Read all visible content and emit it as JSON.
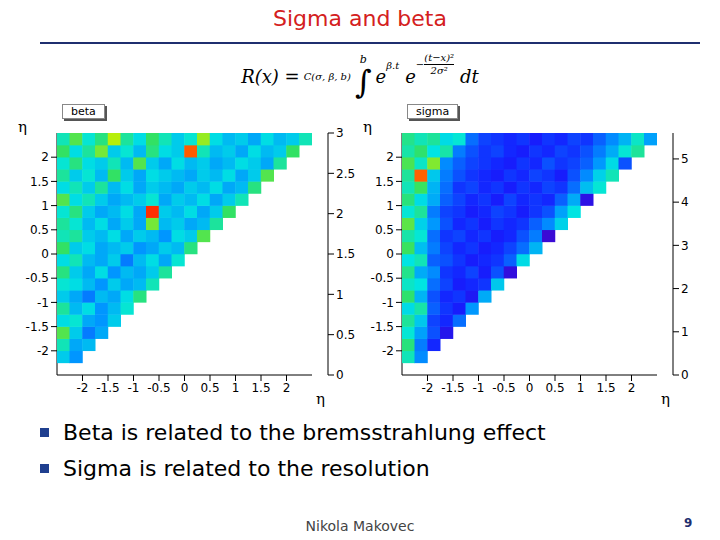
{
  "slide": {
    "title": "Sigma and beta",
    "formula": {
      "lhs": "R(x) =",
      "constant": "C(σ, β, b)",
      "integral": "∫",
      "upper_limit": "b",
      "base": "e",
      "exp1": "β.t",
      "exp2_sign": "−",
      "exp2_numerator": "(t−x)²",
      "exp2_denominator": "2σ²",
      "differential": "dt"
    },
    "bullets": [
      "Beta is related to the bremsstrahlung effect",
      "Sigma is related to the resolution"
    ],
    "footer": "Nikola Makovec",
    "page": 9
  },
  "chart_data": [
    {
      "type": "heatmap",
      "title": "beta",
      "x_label": "η",
      "y_label": "η",
      "xlim": [
        -2.5,
        2.5
      ],
      "ylim": [
        -2.5,
        2.5
      ],
      "xticks": [
        -2,
        -1.5,
        -1,
        -0.5,
        0,
        0.5,
        1,
        1.5,
        2
      ],
      "yticks": [
        -2,
        -1.5,
        -1,
        -0.5,
        0,
        0.5,
        1,
        1.5,
        2
      ],
      "x_bins": [
        -2.5,
        -2.25,
        -2,
        -1.75,
        -1.5,
        -1.25,
        -1,
        -0.75,
        -0.5,
        -0.25,
        0,
        0.25,
        0.5,
        0.75,
        1,
        1.25,
        1.5,
        1.75,
        2,
        2.25,
        2.5
      ],
      "y_bins": [
        -2.5,
        -2.25,
        -2,
        -1.75,
        -1.5,
        -1.25,
        -1,
        -0.75,
        -0.5,
        -0.25,
        0,
        0.25,
        0.5,
        0.75,
        1,
        1.25,
        1.5,
        1.75,
        2,
        2.25,
        2.5
      ],
      "z": [
        [
          null
        ],
        [
          1.2,
          0.9
        ],
        [
          1.5,
          1.0,
          1.1
        ],
        [
          1.9,
          1.2,
          0.8,
          1.0
        ],
        [
          1.3,
          1.4,
          1.0,
          0.9,
          1.2
        ],
        [
          1.6,
          1.1,
          1.3,
          0.9,
          1.1,
          1.4
        ],
        [
          1.2,
          1.0,
          0.8,
          1.1,
          1.0,
          1.3,
          1.7
        ],
        [
          1.4,
          1.3,
          1.1,
          0.9,
          1.2,
          1.0,
          1.1,
          1.5
        ],
        [
          1.7,
          1.2,
          1.0,
          1.3,
          0.9,
          1.1,
          1.0,
          1.2,
          1.6
        ],
        [
          1.3,
          1.5,
          1.1,
          1.0,
          1.2,
          0.8,
          1.1,
          1.3,
          1.0,
          1.4
        ],
        [
          1.8,
          1.2,
          1.3,
          1.0,
          1.1,
          1.2,
          0.9,
          1.0,
          1.2,
          1.1,
          1.7
        ],
        [
          1.5,
          1.6,
          1.2,
          1.1,
          1.3,
          1.0,
          1.2,
          1.1,
          0.9,
          1.3,
          1.2,
          1.9
        ],
        [
          1.6,
          1.4,
          1.1,
          1.3,
          1.0,
          1.2,
          1.0,
          2.0,
          1.1,
          1.2,
          1.0,
          1.1,
          1.6
        ],
        [
          1.4,
          1.7,
          1.2,
          1.0,
          1.1,
          1.3,
          1.0,
          2.9,
          1.2,
          1.1,
          1.3,
          1.0,
          1.2,
          1.8
        ],
        [
          1.9,
          1.3,
          1.5,
          1.2,
          1.0,
          1.1,
          1.2,
          1.4,
          1.0,
          1.2,
          1.1,
          1.3,
          1.0,
          1.2,
          1.5
        ],
        [
          1.3,
          1.5,
          1.2,
          1.6,
          1.1,
          1.3,
          1.0,
          1.2,
          1.1,
          1.0,
          1.2,
          1.1,
          1.3,
          1.0,
          1.1,
          1.7
        ],
        [
          1.6,
          1.2,
          1.4,
          1.1,
          1.8,
          1.2,
          1.0,
          1.3,
          1.2,
          1.1,
          1.0,
          1.2,
          1.1,
          1.3,
          1.0,
          1.2,
          1.9
        ],
        [
          1.4,
          1.7,
          1.3,
          1.2,
          1.5,
          1.1,
          1.9,
          1.2,
          1.0,
          1.3,
          1.1,
          1.2,
          1.0,
          1.1,
          1.3,
          1.2,
          1.0,
          1.6
        ],
        [
          1.8,
          1.3,
          1.6,
          2.0,
          1.2,
          1.4,
          1.1,
          1.7,
          1.3,
          1.2,
          2.8,
          1.5,
          1.1,
          1.2,
          1.0,
          1.3,
          1.1,
          1.2,
          1.8
        ],
        [
          1.5,
          1.9,
          1.4,
          1.7,
          2.2,
          1.6,
          1.3,
          1.8,
          1.5,
          1.2,
          1.4,
          2.1,
          1.3,
          1.1,
          1.2,
          1.0,
          1.3,
          1.1,
          1.2,
          1.5
        ]
      ],
      "colorbar": {
        "range": [
          0,
          3
        ],
        "ticks": [
          0,
          0.5,
          1,
          1.5,
          2,
          2.5,
          3
        ]
      }
    },
    {
      "type": "heatmap",
      "title": "sigma",
      "x_label": "η",
      "y_label": "η",
      "xlim": [
        -2.5,
        2.5
      ],
      "ylim": [
        -2.5,
        2.5
      ],
      "xticks": [
        -2,
        -1.5,
        -1,
        -0.5,
        0,
        0.5,
        1,
        1.5,
        2
      ],
      "yticks": [
        -2,
        -1.5,
        -1,
        -0.5,
        0,
        0.5,
        1,
        1.5,
        2
      ],
      "x_bins": [
        -2.5,
        -2.25,
        -2,
        -1.75,
        -1.5,
        -1.25,
        -1,
        -0.75,
        -0.5,
        -0.25,
        0,
        0.25,
        0.5,
        0.75,
        1,
        1.25,
        1.5,
        1.75,
        2,
        2.25,
        2.5
      ],
      "y_bins": [
        -2.5,
        -2.25,
        -2,
        -1.75,
        -1.5,
        -1.25,
        -1,
        -0.75,
        -0.5,
        -0.25,
        0,
        0.25,
        0.5,
        0.75,
        1,
        1.25,
        1.5,
        1.75,
        2,
        2.25,
        2.5
      ],
      "z": [
        [
          null
        ],
        [
          2.8,
          1.6
        ],
        [
          3.2,
          1.5,
          0.9
        ],
        [
          2.6,
          1.8,
          1.2,
          0.6
        ],
        [
          3.0,
          2.2,
          1.1,
          0.9,
          1.4
        ],
        [
          2.4,
          2.9,
          1.3,
          1.0,
          0.8,
          1.7
        ],
        [
          3.3,
          2.0,
          1.2,
          0.9,
          1.0,
          0.7,
          1.9
        ],
        [
          2.7,
          2.5,
          1.4,
          1.1,
          0.8,
          0.9,
          1.0,
          2.2
        ],
        [
          3.1,
          1.9,
          1.6,
          1.0,
          0.9,
          1.1,
          0.8,
          1.2,
          0.4
        ],
        [
          2.5,
          2.8,
          1.3,
          1.2,
          1.0,
          0.8,
          0.9,
          1.0,
          1.3,
          2.4
        ],
        [
          3.4,
          2.1,
          1.5,
          1.1,
          0.9,
          1.0,
          0.8,
          0.9,
          1.1,
          1.4,
          2.0
        ],
        [
          2.9,
          2.6,
          1.4,
          1.0,
          1.1,
          0.9,
          1.0,
          0.8,
          0.9,
          1.2,
          1.5,
          0.3
        ],
        [
          3.6,
          2.3,
          1.7,
          1.2,
          0.9,
          1.0,
          0.8,
          1.0,
          0.9,
          1.0,
          1.3,
          1.6,
          2.3
        ],
        [
          2.6,
          3.0,
          1.5,
          1.1,
          1.0,
          0.8,
          0.9,
          1.1,
          1.0,
          0.8,
          1.0,
          1.2,
          1.8,
          2.5
        ],
        [
          3.2,
          2.4,
          1.9,
          1.3,
          1.1,
          0.9,
          1.0,
          0.8,
          1.1,
          0.9,
          1.0,
          0.9,
          1.3,
          1.9,
          0.5
        ],
        [
          2.8,
          3.4,
          2.0,
          1.4,
          1.0,
          1.1,
          0.9,
          1.0,
          0.8,
          1.0,
          0.9,
          1.1,
          1.0,
          1.4,
          2.1,
          2.6
        ],
        [
          3.0,
          5.2,
          2.2,
          1.5,
          1.2,
          1.0,
          0.9,
          0.8,
          1.0,
          0.9,
          1.1,
          1.0,
          0.8,
          1.2,
          1.6,
          2.3,
          2.8
        ],
        [
          3.5,
          2.7,
          3.8,
          1.6,
          1.3,
          1.1,
          1.0,
          0.9,
          0.8,
          1.0,
          0.9,
          1.2,
          1.0,
          1.1,
          1.3,
          1.7,
          2.4,
          1.2
        ],
        [
          2.9,
          3.3,
          2.5,
          2.9,
          1.5,
          1.2,
          1.0,
          1.1,
          0.9,
          0.8,
          1.0,
          0.9,
          1.1,
          1.0,
          1.2,
          1.5,
          1.9,
          2.6,
          3.0
        ],
        [
          3.1,
          2.8,
          3.0,
          2.4,
          2.6,
          1.4,
          1.1,
          1.0,
          0.9,
          1.0,
          0.8,
          1.0,
          0.9,
          1.1,
          1.0,
          1.3,
          1.6,
          2.0,
          2.7,
          1.8
        ]
      ],
      "colorbar": {
        "range": [
          0,
          5.6
        ],
        "ticks": [
          0,
          1,
          2,
          3,
          4,
          5
        ]
      }
    }
  ]
}
